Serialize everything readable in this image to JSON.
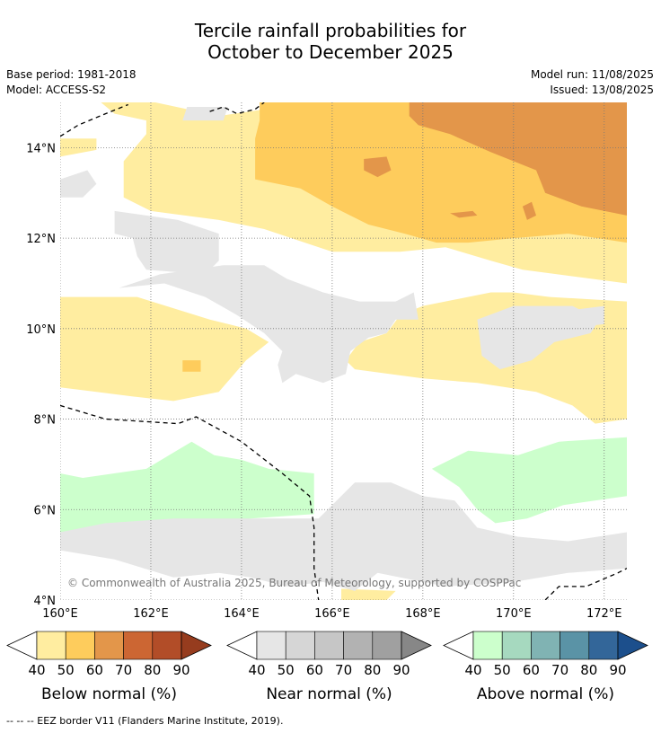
{
  "title": {
    "line1": "Tercile rainfall probabilities for",
    "line2": "October to December 2025"
  },
  "meta": {
    "base_period": "Base period: 1981-2018",
    "model": "Model: ACCESS-S2",
    "model_run": "Model run: 11/08/2025",
    "issued": "Issued: 13/08/2025"
  },
  "map": {
    "lon_range": [
      160,
      172.5
    ],
    "lat_range": [
      4,
      15
    ],
    "lon_ticks": [
      {
        "value": 160,
        "label": "160°E"
      },
      {
        "value": 162,
        "label": "162°E"
      },
      {
        "value": 164,
        "label": "164°E"
      },
      {
        "value": 166,
        "label": "166°E"
      },
      {
        "value": 168,
        "label": "168°E"
      },
      {
        "value": 170,
        "label": "170°E"
      },
      {
        "value": 172,
        "label": "172°E"
      }
    ],
    "lat_ticks": [
      {
        "value": 4,
        "label": "4°N"
      },
      {
        "value": 6,
        "label": "6°N"
      },
      {
        "value": 8,
        "label": "8°N"
      },
      {
        "value": 10,
        "label": "10°N"
      },
      {
        "value": 12,
        "label": "12°N"
      },
      {
        "value": 14,
        "label": "14°N"
      }
    ],
    "gridlines": true,
    "copyright": "© Commonwealth of Australia 2025, Bureau of Meteorology, supported by COSPPac",
    "regions": [
      {
        "category": "below",
        "level": 40,
        "color": "#ffeda0",
        "points": [
          [
            160.9,
            15
          ],
          [
            162.1,
            15
          ],
          [
            163.5,
            14.7
          ],
          [
            165.2,
            14.95
          ],
          [
            172.5,
            15
          ],
          [
            172.5,
            11
          ],
          [
            170.2,
            11.3
          ],
          [
            169.5,
            11.5
          ],
          [
            168.5,
            11.8
          ],
          [
            167.5,
            11.7
          ],
          [
            166,
            11.7
          ],
          [
            165.1,
            12
          ],
          [
            164.5,
            12.2
          ],
          [
            163.5,
            12.4
          ],
          [
            162,
            12.6
          ],
          [
            161.4,
            12.9
          ],
          [
            161.4,
            13.7
          ],
          [
            161.9,
            14.3
          ],
          [
            161.9,
            14.6
          ],
          [
            161.2,
            14.75
          ]
        ]
      },
      {
        "category": "below",
        "level": 40,
        "color": "#ffeda0",
        "points": [
          [
            160,
            14.2
          ],
          [
            160.8,
            14.2
          ],
          [
            160.8,
            13.95
          ],
          [
            160,
            13.8
          ]
        ]
      },
      {
        "category": "below",
        "level": 40,
        "color": "#ffeda0",
        "points": [
          [
            160,
            10.7
          ],
          [
            161.7,
            10.7
          ],
          [
            163.3,
            10.2
          ],
          [
            164.1,
            10
          ],
          [
            164.6,
            9.7
          ],
          [
            164.1,
            9.3
          ],
          [
            163.5,
            8.6
          ],
          [
            162.5,
            8.4
          ],
          [
            161.6,
            8.5
          ],
          [
            160.8,
            8.6
          ],
          [
            160,
            8.7
          ]
        ]
      },
      {
        "category": "below",
        "level": 40,
        "color": "#ffeda0",
        "points": [
          [
            167.5,
            10.3
          ],
          [
            168,
            10.5
          ],
          [
            169.5,
            10.8
          ],
          [
            170,
            10.8
          ],
          [
            170.8,
            10.7
          ],
          [
            172.5,
            10.6
          ],
          [
            172.5,
            8
          ],
          [
            171.8,
            7.9
          ],
          [
            171.3,
            8.3
          ],
          [
            170.5,
            8.6
          ],
          [
            169.2,
            8.8
          ],
          [
            168,
            8.9
          ],
          [
            166.5,
            9.1
          ],
          [
            166.3,
            9.3
          ],
          [
            166.6,
            9.7
          ],
          [
            167.2,
            9.9
          ]
        ]
      },
      {
        "category": "below",
        "level": 40,
        "color": "#ffeda0",
        "points": [
          [
            166.2,
            4.25
          ],
          [
            167.4,
            4.2
          ],
          [
            167.2,
            4
          ],
          [
            166.2,
            4
          ]
        ]
      },
      {
        "category": "below",
        "level": 50,
        "color": "#fecc5c",
        "points": [
          [
            164.4,
            15
          ],
          [
            172.5,
            15
          ],
          [
            172.5,
            11.9
          ],
          [
            171.2,
            12.1
          ],
          [
            170,
            12
          ],
          [
            169,
            11.9
          ],
          [
            168.3,
            11.9
          ],
          [
            167.6,
            12.1
          ],
          [
            166.8,
            12.3
          ],
          [
            166,
            12.7
          ],
          [
            165.3,
            13.1
          ],
          [
            164.3,
            13.3
          ],
          [
            164.3,
            14.2
          ],
          [
            164.4,
            14.6
          ]
        ]
      },
      {
        "category": "below",
        "level": 50,
        "color": "#fecc5c",
        "points": [
          [
            162.7,
            9.3
          ],
          [
            163.1,
            9.3
          ],
          [
            163.1,
            9.05
          ],
          [
            162.7,
            9.05
          ]
        ]
      },
      {
        "category": "below",
        "level": 60,
        "color": "#e3964a",
        "points": [
          [
            167.7,
            15
          ],
          [
            172.5,
            15
          ],
          [
            172.5,
            12.5
          ],
          [
            171.5,
            12.7
          ],
          [
            170.7,
            13
          ],
          [
            170.5,
            13.5
          ],
          [
            169.5,
            13.9
          ],
          [
            168.6,
            14.3
          ],
          [
            167.9,
            14.5
          ],
          [
            167.7,
            14.7
          ]
        ]
      },
      {
        "category": "below",
        "level": 60,
        "color": "#e3964a",
        "points": [
          [
            166.7,
            13.75
          ],
          [
            167.2,
            13.8
          ],
          [
            167.3,
            13.5
          ],
          [
            167,
            13.35
          ],
          [
            166.7,
            13.5
          ]
        ]
      },
      {
        "category": "below",
        "level": 60,
        "color": "#e3964a",
        "points": [
          [
            168.6,
            12.55
          ],
          [
            169.1,
            12.6
          ],
          [
            169.2,
            12.5
          ],
          [
            168.8,
            12.45
          ]
        ]
      },
      {
        "category": "below",
        "level": 60,
        "color": "#e3964a",
        "points": [
          [
            170.2,
            12.7
          ],
          [
            170.4,
            12.8
          ],
          [
            170.5,
            12.5
          ],
          [
            170.3,
            12.4
          ]
        ]
      },
      {
        "category": "below",
        "level": 60,
        "color": "#e3964a",
        "points": [
          [
            171.8,
            14.2
          ],
          [
            172.2,
            14.2
          ],
          [
            172.2,
            14.05
          ],
          [
            171.8,
            14.05
          ]
        ]
      },
      {
        "category": "near",
        "level": 40,
        "color": "#e6e6e6",
        "points": [
          [
            161.2,
            12.6
          ],
          [
            162.6,
            12.4
          ],
          [
            163.5,
            12.1
          ],
          [
            163.5,
            11.5
          ],
          [
            163.2,
            11.2
          ],
          [
            161.9,
            11.3
          ],
          [
            161.7,
            11.6
          ],
          [
            161.6,
            12
          ],
          [
            161.2,
            12.1
          ]
        ]
      },
      {
        "category": "near",
        "level": 40,
        "color": "#e6e6e6",
        "points": [
          [
            161.3,
            10.9
          ],
          [
            162.2,
            11.2
          ],
          [
            163.6,
            11.4
          ],
          [
            164.5,
            11.4
          ],
          [
            165,
            11.1
          ],
          [
            165.8,
            10.8
          ],
          [
            166.6,
            10.6
          ],
          [
            167.4,
            10.6
          ],
          [
            167.8,
            10.8
          ],
          [
            167.9,
            10.2
          ],
          [
            167.4,
            10.2
          ],
          [
            167.2,
            9.9
          ],
          [
            166.8,
            9.8
          ],
          [
            166.4,
            9.5
          ],
          [
            166.3,
            9
          ],
          [
            165.8,
            8.8
          ],
          [
            165.2,
            9
          ],
          [
            164.9,
            8.8
          ],
          [
            164.8,
            9.2
          ],
          [
            164.9,
            9.5
          ],
          [
            164.5,
            9.9
          ],
          [
            163.9,
            10.3
          ],
          [
            163.2,
            10.7
          ],
          [
            162.3,
            11
          ]
        ]
      },
      {
        "category": "near",
        "level": 40,
        "color": "#e6e6e6",
        "points": [
          [
            171.2,
            10.4
          ],
          [
            172,
            10.5
          ],
          [
            172,
            10.1
          ],
          [
            171.2,
            10
          ]
        ]
      },
      {
        "category": "near",
        "level": 40,
        "color": "#e6e6e6",
        "points": [
          [
            169.2,
            10.2
          ],
          [
            170,
            10.5
          ],
          [
            171.3,
            10.5
          ],
          [
            171.9,
            10.2
          ],
          [
            171.7,
            9.9
          ],
          [
            170.9,
            9.7
          ],
          [
            170.4,
            9.3
          ],
          [
            169.7,
            9.1
          ],
          [
            169.3,
            9.4
          ]
        ]
      },
      {
        "category": "near",
        "level": 40,
        "color": "#e6e6e6",
        "points": [
          [
            160,
            6.2
          ],
          [
            162.4,
            5.9
          ],
          [
            163.5,
            5.9
          ],
          [
            164.2,
            5.8
          ],
          [
            165.7,
            5.8
          ],
          [
            166.1,
            6.2
          ],
          [
            166.5,
            6.6
          ],
          [
            167.3,
            6.6
          ],
          [
            168,
            6.3
          ],
          [
            168.7,
            6.2
          ],
          [
            169.2,
            5.6
          ],
          [
            170.1,
            5.4
          ],
          [
            171.2,
            5.3
          ],
          [
            172.5,
            5.5
          ],
          [
            172.5,
            4.7
          ],
          [
            171.2,
            4.6
          ],
          [
            170,
            4.4
          ],
          [
            168.5,
            4.3
          ],
          [
            167,
            4.6
          ],
          [
            166.5,
            4.2
          ],
          [
            165.8,
            4.4
          ],
          [
            165,
            4.3
          ],
          [
            164.2,
            4.5
          ],
          [
            163.5,
            4.6
          ],
          [
            162.5,
            4.5
          ],
          [
            161.2,
            4.9
          ],
          [
            160,
            5.1
          ]
        ]
      },
      {
        "category": "near",
        "level": 40,
        "color": "#e6e6e6",
        "points": [
          [
            160,
            13.3
          ],
          [
            160.6,
            13.5
          ],
          [
            160.8,
            13.2
          ],
          [
            160.5,
            12.9
          ],
          [
            160,
            12.9
          ]
        ]
      },
      {
        "category": "near",
        "level": 40,
        "color": "#e6e6e6",
        "points": [
          [
            162.8,
            14.9
          ],
          [
            163.7,
            14.9
          ],
          [
            163.6,
            14.6
          ],
          [
            162.7,
            14.6
          ]
        ]
      },
      {
        "category": "above",
        "level": 40,
        "color": "#ccffcc",
        "points": [
          [
            160,
            5.5
          ],
          [
            161,
            5.7
          ],
          [
            162.5,
            5.8
          ],
          [
            164.2,
            5.8
          ],
          [
            165.6,
            5.9
          ],
          [
            165.6,
            6.8
          ],
          [
            164.6,
            6.9
          ],
          [
            164,
            7.1
          ],
          [
            163.4,
            7.2
          ],
          [
            162.9,
            7.5
          ],
          [
            162.4,
            7.2
          ],
          [
            161.9,
            6.9
          ],
          [
            160.5,
            6.7
          ],
          [
            160,
            6.8
          ]
        ]
      },
      {
        "category": "above",
        "level": 40,
        "color": "#ccffcc",
        "points": [
          [
            168.2,
            6.9
          ],
          [
            169,
            7.3
          ],
          [
            170.1,
            7.2
          ],
          [
            171,
            7.5
          ],
          [
            172.5,
            7.6
          ],
          [
            172.5,
            6.3
          ],
          [
            171.1,
            6.1
          ],
          [
            170.3,
            5.8
          ],
          [
            169.6,
            5.7
          ],
          [
            169.2,
            6
          ],
          [
            168.8,
            6.5
          ]
        ]
      }
    ],
    "eez_borders": [
      [
        [
          160,
          14.25
        ],
        [
          160.4,
          14.5
        ],
        [
          161,
          14.75
        ],
        [
          161.5,
          14.95
        ]
      ],
      [
        [
          163.3,
          14.8
        ],
        [
          163.6,
          14.9
        ],
        [
          163.9,
          14.75
        ],
        [
          164.3,
          14.85
        ],
        [
          164.5,
          15
        ]
      ],
      [
        [
          160,
          8.3
        ],
        [
          161,
          8
        ],
        [
          162.6,
          7.9
        ],
        [
          163,
          8.05
        ],
        [
          164,
          7.5
        ],
        [
          164.9,
          6.8
        ],
        [
          165.5,
          6.3
        ],
        [
          165.6,
          5.6
        ],
        [
          165.6,
          4.7
        ],
        [
          165.7,
          4
        ]
      ],
      [
        [
          170.7,
          4
        ],
        [
          171,
          4.3
        ],
        [
          171.6,
          4.3
        ],
        [
          172.3,
          4.6
        ],
        [
          172.5,
          4.7
        ]
      ]
    ]
  },
  "colorbars": [
    {
      "title": "Below normal (%)",
      "ticks": [
        "40",
        "50",
        "60",
        "70",
        "80",
        "90"
      ],
      "colors": [
        "#ffffff",
        "#ffeda0",
        "#fecc5c",
        "#e3964a",
        "#cc6633",
        "#b24d28",
        "#963c1e"
      ]
    },
    {
      "title": "Near normal (%)",
      "ticks": [
        "40",
        "50",
        "60",
        "70",
        "80",
        "90"
      ],
      "colors": [
        "#ffffff",
        "#e6e6e6",
        "#d6d6d6",
        "#c6c6c6",
        "#b2b2b2",
        "#a0a0a0",
        "#878787"
      ]
    },
    {
      "title": "Above normal (%)",
      "ticks": [
        "40",
        "50",
        "60",
        "70",
        "80",
        "90"
      ],
      "colors": [
        "#ffffff",
        "#ccffcc",
        "#a6d9bf",
        "#80b3b3",
        "#5a93a6",
        "#336699",
        "#1c4f8c"
      ]
    }
  ],
  "footer": "-- -- -- EEZ border V11 (Flanders Marine Institute, 2019)."
}
